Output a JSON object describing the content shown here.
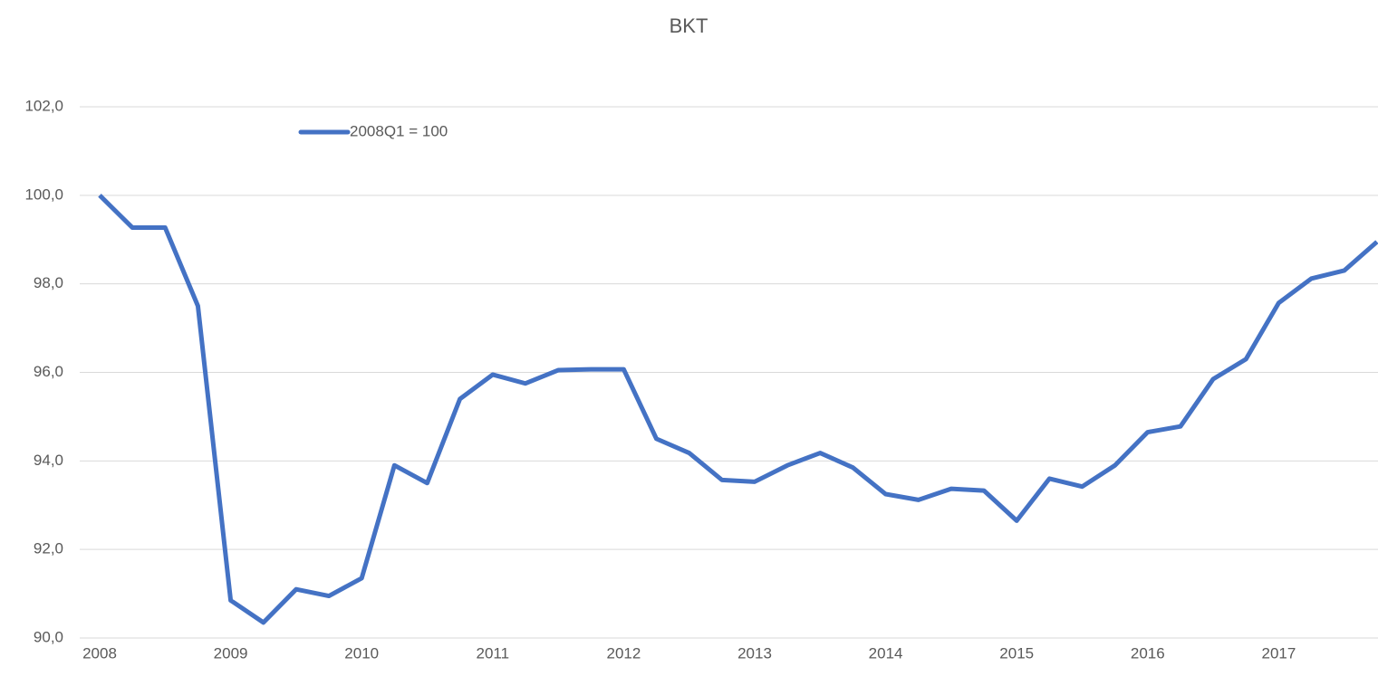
{
  "chart_data": {
    "type": "line",
    "title": "BKT",
    "categories": [
      "2008",
      null,
      null,
      null,
      "2009",
      null,
      null,
      null,
      "2010",
      null,
      null,
      null,
      "2011",
      null,
      null,
      null,
      "2012",
      null,
      null,
      null,
      "2013",
      null,
      null,
      null,
      "2014",
      null,
      null,
      null,
      "2015",
      null,
      null,
      null,
      "2016",
      null,
      null,
      null,
      "2017",
      null,
      null,
      null
    ],
    "series": [
      {
        "name": "2008Q1 = 100",
        "color": "#4472c4",
        "values": [
          100,
          99.27,
          99.27,
          97.5,
          90.85,
          90.35,
          91.1,
          90.95,
          91.35,
          93.9,
          93.5,
          95.4,
          95.95,
          95.75,
          96.05,
          96.07,
          96.07,
          94.5,
          94.18,
          93.57,
          93.53,
          93.9,
          94.18,
          93.85,
          93.25,
          93.12,
          93.37,
          93.33,
          92.65,
          93.6,
          93.42,
          93.9,
          94.65,
          94.78,
          95.85,
          96.3,
          97.57,
          98.12,
          98.3,
          98.95
        ]
      }
    ],
    "ylim": [
      90,
      102
    ],
    "yticks": [
      {
        "value": 90,
        "label": "90,0"
      },
      {
        "value": 92,
        "label": "92,0"
      },
      {
        "value": 94,
        "label": "94,0"
      },
      {
        "value": 96,
        "label": "96,0"
      },
      {
        "value": 98,
        "label": "98,0"
      },
      {
        "value": 100,
        "label": "100,0"
      },
      {
        "value": 102,
        "label": "102,0"
      }
    ],
    "grid": true
  }
}
